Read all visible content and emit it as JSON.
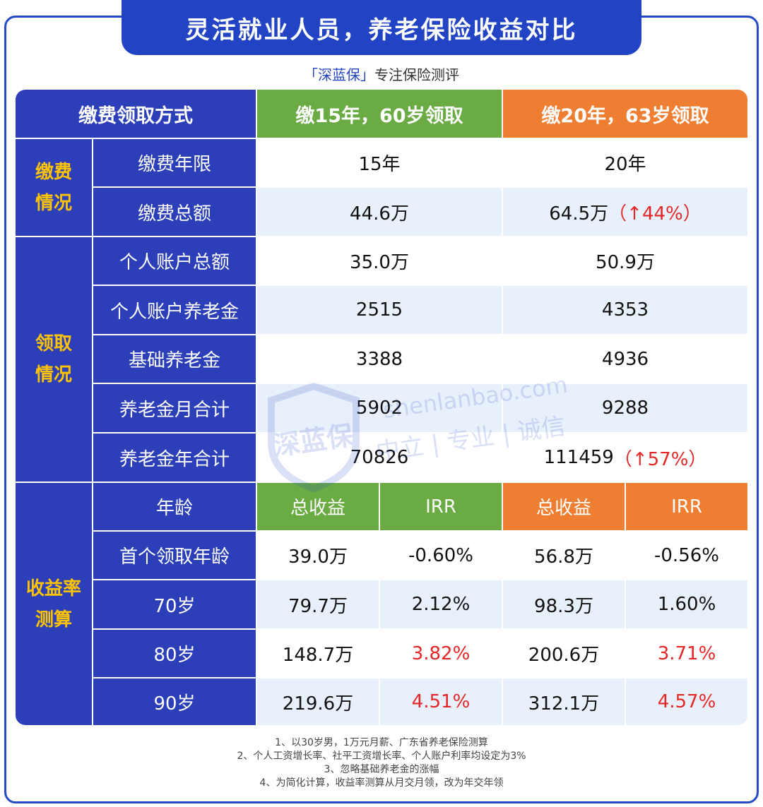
{
  "title": "灵活就业人员，养老保险收益对比",
  "subtitle": {
    "brand": "「深蓝保」",
    "text": "专注保险测评"
  },
  "watermark": {
    "logo": "深蓝保",
    "domain": "shenlanbao.com",
    "slogan": "中立 | 专业 | 诚信"
  },
  "header": {
    "col0": "缴费领取方式",
    "planA": "缴15年，60岁领取",
    "planB": "缴20年，63岁领取"
  },
  "sections": {
    "payment": [
      "缴费",
      "情况"
    ],
    "receive": [
      "领取",
      "情况"
    ],
    "yield": [
      "收益率",
      "测算"
    ]
  },
  "rows": [
    {
      "label": "缴费年限",
      "a": "15年",
      "b": "20年",
      "b_note": ""
    },
    {
      "label": "缴费总额",
      "a": "44.6万",
      "b": "64.5万",
      "b_note": "（↑44%）"
    },
    {
      "label": "个人账户总额",
      "a": "35.0万",
      "b": "50.9万",
      "b_note": ""
    },
    {
      "label": "个人账户养老金",
      "a": "2515",
      "b": "4353",
      "b_note": ""
    },
    {
      "label": "基础养老金",
      "a": "3388",
      "b": "4936",
      "b_note": ""
    },
    {
      "label": "养老金月合计",
      "a": "5902",
      "b": "9288",
      "b_note": ""
    },
    {
      "label": "养老金年合计",
      "a": "70826",
      "b": "111459",
      "b_note": "（↑57%）"
    }
  ],
  "yield_header": {
    "label": "年龄",
    "total": "总收益",
    "irr": "IRR"
  },
  "yield_rows": [
    {
      "label": "首个领取年龄",
      "a_total": "39.0万",
      "a_irr": "-0.60%",
      "b_total": "56.8万",
      "b_irr": "-0.56%"
    },
    {
      "label": "70岁",
      "a_total": "79.7万",
      "a_irr": "2.12%",
      "b_total": "98.3万",
      "b_irr": "1.60%"
    },
    {
      "label": "80岁",
      "a_total": "148.7万",
      "a_irr": "3.82%",
      "b_total": "200.6万",
      "b_irr": "3.71%"
    },
    {
      "label": "90岁",
      "a_total": "219.6万",
      "a_irr": "4.51%",
      "b_total": "312.1万",
      "b_irr": "4.57%"
    }
  ],
  "notes": [
    "1、以30岁男，1万元月薪、广东省养老保险测算",
    "2、个人工资增长率、社平工资增长率、个人账户利率均设定为3%",
    "3、忽略基础养老金的涨幅",
    "4、为简化计算，收益率测算从月交月领，改为年交年领"
  ],
  "colors": {
    "banner": "#2244c4",
    "label_bg": "#2c3fb8",
    "green": "#6aab44",
    "orange": "#ee7f32",
    "section_text": "#ffc400",
    "highlight": "#e52626",
    "stripe": "#e8f0fb"
  }
}
